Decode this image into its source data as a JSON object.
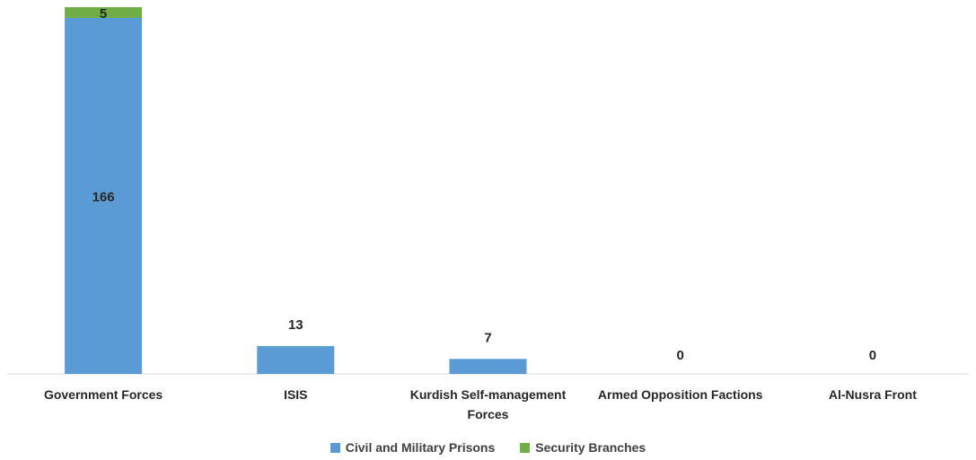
{
  "chart_data": {
    "type": "bar",
    "stacked": true,
    "categories": [
      "Government Forces",
      "ISIS",
      "Kurdish Self-management Forces",
      "Armed Opposition Factions",
      "Al-Nusra Front"
    ],
    "category_lines": [
      [
        "Government Forces"
      ],
      [
        "ISIS"
      ],
      [
        "Kurdish Self-management",
        "Forces"
      ],
      [
        "Armed Opposition Factions"
      ],
      [
        "Al-Nusra Front"
      ]
    ],
    "series": [
      {
        "name": "Civil and Military Prisons",
        "color": "#5b9bd5",
        "values": [
          166,
          13,
          7,
          0,
          0
        ]
      },
      {
        "name": "Security Branches",
        "color": "#70ad47",
        "values": [
          5,
          0,
          0,
          0,
          0
        ]
      }
    ],
    "data_labels": [
      {
        "category": 0,
        "series": 0,
        "text": "166"
      },
      {
        "category": 0,
        "series": 1,
        "text": "5"
      },
      {
        "category": 1,
        "series": 0,
        "text": "13"
      },
      {
        "category": 2,
        "series": 0,
        "text": "7"
      },
      {
        "category": 3,
        "series": 0,
        "text": "0"
      },
      {
        "category": 4,
        "series": 0,
        "text": "0"
      }
    ],
    "title": "",
    "xlabel": "",
    "ylabel": "",
    "ylim": [
      0,
      171
    ],
    "grid": false,
    "legend_position": "bottom"
  }
}
